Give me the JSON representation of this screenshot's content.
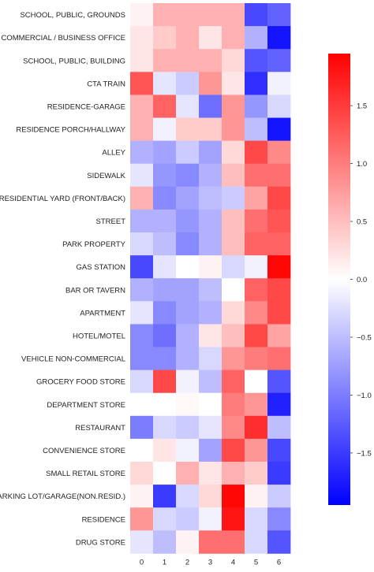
{
  "chart_data": {
    "type": "heatmap",
    "title": "",
    "xlabel": "",
    "ylabel": "",
    "x_categories": [
      "0",
      "1",
      "2",
      "3",
      "4",
      "5",
      "6"
    ],
    "y_categories": [
      "SCHOOL, PUBLIC, GROUNDS",
      "COMMERCIAL / BUSINESS OFFICE",
      "SCHOOL, PUBLIC, BUILDING",
      "CTA TRAIN",
      "RESIDENCE-GARAGE",
      "RESIDENCE PORCH/HALLWAY",
      "ALLEY",
      "SIDEWALK",
      "RESIDENTIAL YARD (FRONT/BACK)",
      "STREET",
      "PARK PROPERTY",
      "GAS STATION",
      "BAR OR TAVERN",
      "APARTMENT",
      "HOTEL/MOTEL",
      "VEHICLE NON-COMMERCIAL",
      "GROCERY FOOD STORE",
      "DEPARTMENT STORE",
      "RESTAURANT",
      "CONVENIENCE STORE",
      "SMALL RETAIL STORE",
      "PARKING LOT/GARAGE(NON.RESID.)",
      "RESIDENCE",
      "DRUG STORE"
    ],
    "values": [
      [
        0.1,
        0.6,
        0.6,
        0.6,
        0.6,
        -1.4,
        -1.2
      ],
      [
        0.2,
        0.4,
        0.6,
        0.2,
        0.6,
        -0.6,
        -1.8
      ],
      [
        0.2,
        0.6,
        0.6,
        0.6,
        0.3,
        -1.3,
        -1.2
      ],
      [
        1.3,
        -0.2,
        -0.4,
        0.8,
        0.2,
        -1.6,
        -0.1
      ],
      [
        0.6,
        1.2,
        -0.2,
        -1.1,
        0.8,
        -0.8,
        -0.3
      ],
      [
        0.6,
        -0.1,
        0.4,
        0.4,
        0.8,
        -0.5,
        -1.8
      ],
      [
        -0.6,
        -0.7,
        -0.4,
        -0.7,
        0.3,
        1.4,
        0.9
      ],
      [
        -0.2,
        -0.8,
        -0.9,
        -0.6,
        0.5,
        1.1,
        1.1
      ],
      [
        0.6,
        -0.9,
        -0.7,
        -0.5,
        -0.4,
        0.7,
        1.4
      ],
      [
        -0.6,
        -0.6,
        -0.8,
        -0.6,
        0.5,
        1.1,
        1.3
      ],
      [
        -0.3,
        -0.5,
        -0.9,
        -0.6,
        0.5,
        1.2,
        1.2
      ],
      [
        -1.4,
        -0.2,
        0.0,
        0.1,
        -0.3,
        -0.1,
        1.9
      ],
      [
        -0.6,
        -0.7,
        -0.7,
        -0.5,
        0.0,
        1.2,
        1.4
      ],
      [
        -0.2,
        -0.9,
        -0.7,
        -0.6,
        0.3,
        0.9,
        1.4
      ],
      [
        -0.9,
        -1.1,
        -0.6,
        0.2,
        0.5,
        1.4,
        0.7
      ],
      [
        -0.9,
        -0.9,
        -0.6,
        -0.3,
        0.8,
        1.0,
        1.1
      ],
      [
        -0.3,
        1.4,
        -0.1,
        -0.5,
        1.2,
        0.0,
        -1.3
      ],
      [
        0.0,
        0.0,
        0.05,
        0.0,
        1.0,
        0.8,
        -1.7
      ],
      [
        -1.0,
        -0.3,
        -0.4,
        -0.2,
        0.9,
        1.6,
        -0.5
      ],
      [
        0.0,
        0.2,
        -0.1,
        -0.7,
        1.4,
        0.8,
        -1.4
      ],
      [
        0.3,
        0.0,
        0.6,
        0.2,
        0.6,
        0.4,
        -1.5
      ],
      [
        0.1,
        -1.5,
        -0.3,
        0.3,
        1.9,
        0.1,
        -0.4
      ],
      [
        0.8,
        -0.3,
        -0.4,
        -0.1,
        1.8,
        -0.3,
        -0.9
      ],
      [
        -0.2,
        -0.5,
        0.1,
        1.1,
        1.1,
        -0.3,
        -1.3
      ]
    ],
    "colormap": "bwr",
    "color_range": [
      -1.95,
      1.95
    ],
    "colorbar_ticks": [
      1.5,
      1.0,
      0.5,
      0.0,
      -0.5,
      -1.0,
      -1.5
    ],
    "colorbar_tick_labels": [
      "1.5",
      "1.0",
      "0.5",
      "0.0",
      "−0.5",
      "−1.0",
      "−1.5"
    ],
    "colors": {
      "low": "#0000ff",
      "mid": "#ffffff",
      "high": "#ff0000"
    },
    "grid": false,
    "legend": "colorbar-right"
  }
}
